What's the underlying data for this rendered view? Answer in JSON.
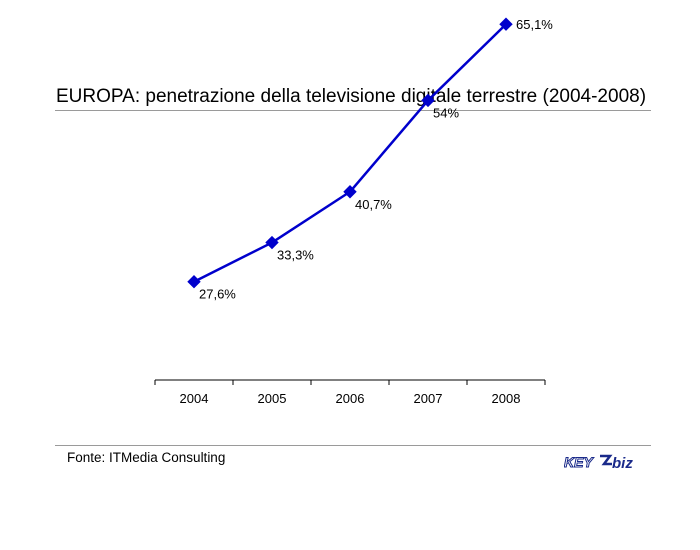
{
  "title": "EUROPA: penetrazione della televisione digitale terrestre (2004-2008)",
  "source": "Fonte: ITMedia Consulting",
  "logo": {
    "text_left": "KEY",
    "text_right": "biz",
    "color": "#1a2a8a"
  },
  "chart_data": {
    "type": "line",
    "categories": [
      "2004",
      "2005",
      "2006",
      "2007",
      "2008"
    ],
    "series": [
      {
        "values": [
          27.6,
          33.3,
          40.7,
          54,
          65.1
        ],
        "labels": [
          "27,6%",
          "33,3%",
          "40,7%",
          "54%",
          "65,1%"
        ],
        "color": "#0000cc",
        "marker": "diamond"
      }
    ],
    "xlabel": "",
    "ylabel": "",
    "ylim": [
      0,
      100
    ],
    "grid": false,
    "legend": "none"
  }
}
